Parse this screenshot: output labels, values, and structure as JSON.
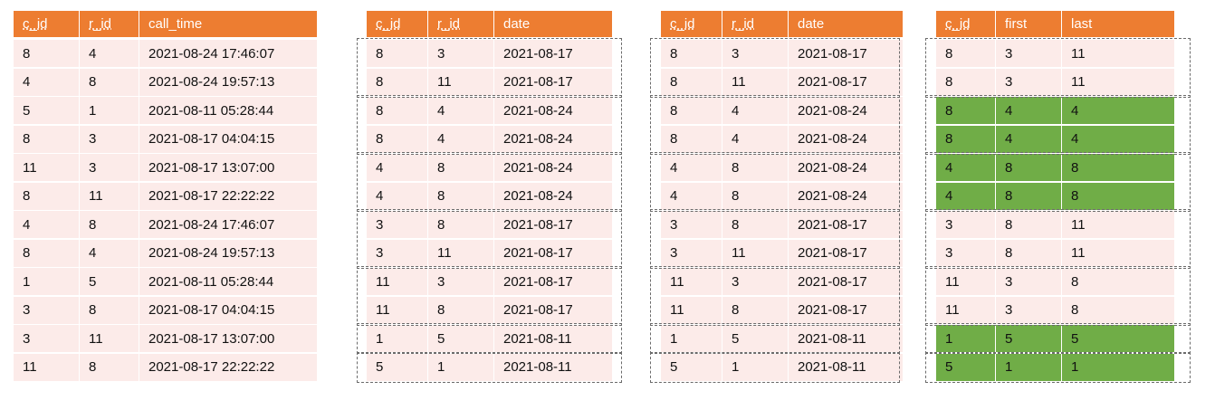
{
  "tables": [
    {
      "name": "calls",
      "headers": [
        "c_id",
        "r_id",
        "call_time"
      ],
      "rows": [
        [
          "8",
          "4",
          "2021-08-24 17:46:07"
        ],
        [
          "4",
          "8",
          "2021-08-24 19:57:13"
        ],
        [
          "5",
          "1",
          "2021-08-11 05:28:44"
        ],
        [
          "8",
          "3",
          "2021-08-17 04:04:15"
        ],
        [
          "11",
          "3",
          "2021-08-17 13:07:00"
        ],
        [
          "8",
          "11",
          "2021-08-17 22:22:22"
        ],
        [
          "4",
          "8",
          "2021-08-24 17:46:07"
        ],
        [
          "8",
          "4",
          "2021-08-24 19:57:13"
        ],
        [
          "1",
          "5",
          "2021-08-11 05:28:44"
        ],
        [
          "3",
          "8",
          "2021-08-17 04:04:15"
        ],
        [
          "3",
          "11",
          "2021-08-17 13:07:00"
        ],
        [
          "11",
          "8",
          "2021-08-17 22:22:22"
        ]
      ]
    },
    {
      "name": "grouped-by-date",
      "headers": [
        "c_id",
        "r_id",
        "date"
      ],
      "rows": [
        [
          "8",
          "3",
          "2021-08-17"
        ],
        [
          "8",
          "11",
          "2021-08-17"
        ],
        [
          "8",
          "4",
          "2021-08-24"
        ],
        [
          "8",
          "4",
          "2021-08-24"
        ],
        [
          "4",
          "8",
          "2021-08-24"
        ],
        [
          "4",
          "8",
          "2021-08-24"
        ],
        [
          "3",
          "8",
          "2021-08-17"
        ],
        [
          "3",
          "11",
          "2021-08-17"
        ],
        [
          "11",
          "3",
          "2021-08-17"
        ],
        [
          "11",
          "8",
          "2021-08-17"
        ],
        [
          "1",
          "5",
          "2021-08-11"
        ],
        [
          "5",
          "1",
          "2021-08-11"
        ]
      ]
    },
    {
      "name": "grouped-by-date-copy",
      "headers": [
        "c_id",
        "r_id",
        "date"
      ],
      "rows": [
        [
          "8",
          "3",
          "2021-08-17"
        ],
        [
          "8",
          "11",
          "2021-08-17"
        ],
        [
          "8",
          "4",
          "2021-08-24"
        ],
        [
          "8",
          "4",
          "2021-08-24"
        ],
        [
          "4",
          "8",
          "2021-08-24"
        ],
        [
          "4",
          "8",
          "2021-08-24"
        ],
        [
          "3",
          "8",
          "2021-08-17"
        ],
        [
          "3",
          "11",
          "2021-08-17"
        ],
        [
          "11",
          "3",
          "2021-08-17"
        ],
        [
          "11",
          "8",
          "2021-08-17"
        ],
        [
          "1",
          "5",
          "2021-08-11"
        ],
        [
          "5",
          "1",
          "2021-08-11"
        ]
      ]
    },
    {
      "name": "first-last",
      "headers": [
        "c_id",
        "first",
        "last"
      ],
      "rows": [
        [
          "8",
          "3",
          "11"
        ],
        [
          "8",
          "3",
          "11"
        ],
        [
          "8",
          "4",
          "4"
        ],
        [
          "8",
          "4",
          "4"
        ],
        [
          "4",
          "8",
          "8"
        ],
        [
          "4",
          "8",
          "8"
        ],
        [
          "3",
          "8",
          "11"
        ],
        [
          "3",
          "8",
          "11"
        ],
        [
          "11",
          "3",
          "8"
        ],
        [
          "11",
          "3",
          "8"
        ],
        [
          "1",
          "5",
          "5"
        ],
        [
          "5",
          "1",
          "1"
        ]
      ],
      "highlighted_rows": [
        2,
        3,
        4,
        5,
        10,
        11
      ]
    }
  ],
  "groups": [
    [
      0,
      1
    ],
    [
      2,
      3
    ],
    [
      4,
      5
    ],
    [
      6,
      7
    ],
    [
      8,
      9
    ],
    [
      10
    ],
    [
      11
    ]
  ],
  "colors": {
    "header": "#ED7D31",
    "cell": "#FCEBE9",
    "highlight": "#70AD47",
    "group_border": "#6b6b6b"
  }
}
